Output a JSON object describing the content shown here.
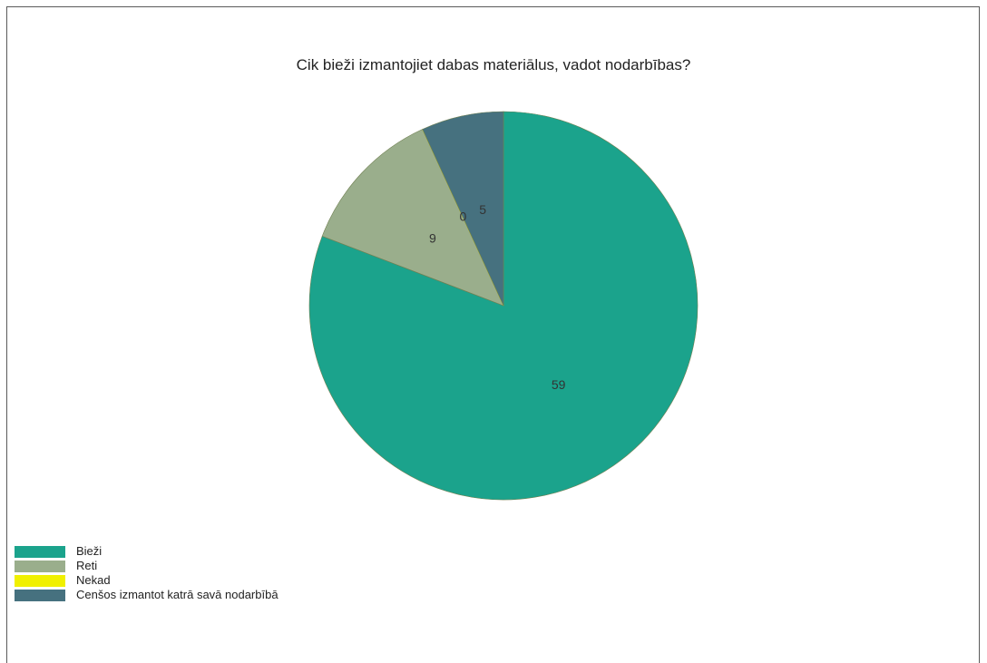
{
  "chart_data": {
    "type": "pie",
    "title": "Cik bieži izmantojiet dabas materiālus, vadot nodarbības?",
    "legend_position": "bottom-left",
    "slices": [
      {
        "label": "Bieži",
        "value": 59,
        "color": "#1ba38c"
      },
      {
        "label": "Reti",
        "value": 9,
        "color": "#9aae8c"
      },
      {
        "label": "Nekad",
        "value": 0,
        "color": "#f0f000"
      },
      {
        "label": "Cenšos izmantot katrā savā nodarbībā",
        "value": 5,
        "color": "#46717f"
      }
    ]
  }
}
